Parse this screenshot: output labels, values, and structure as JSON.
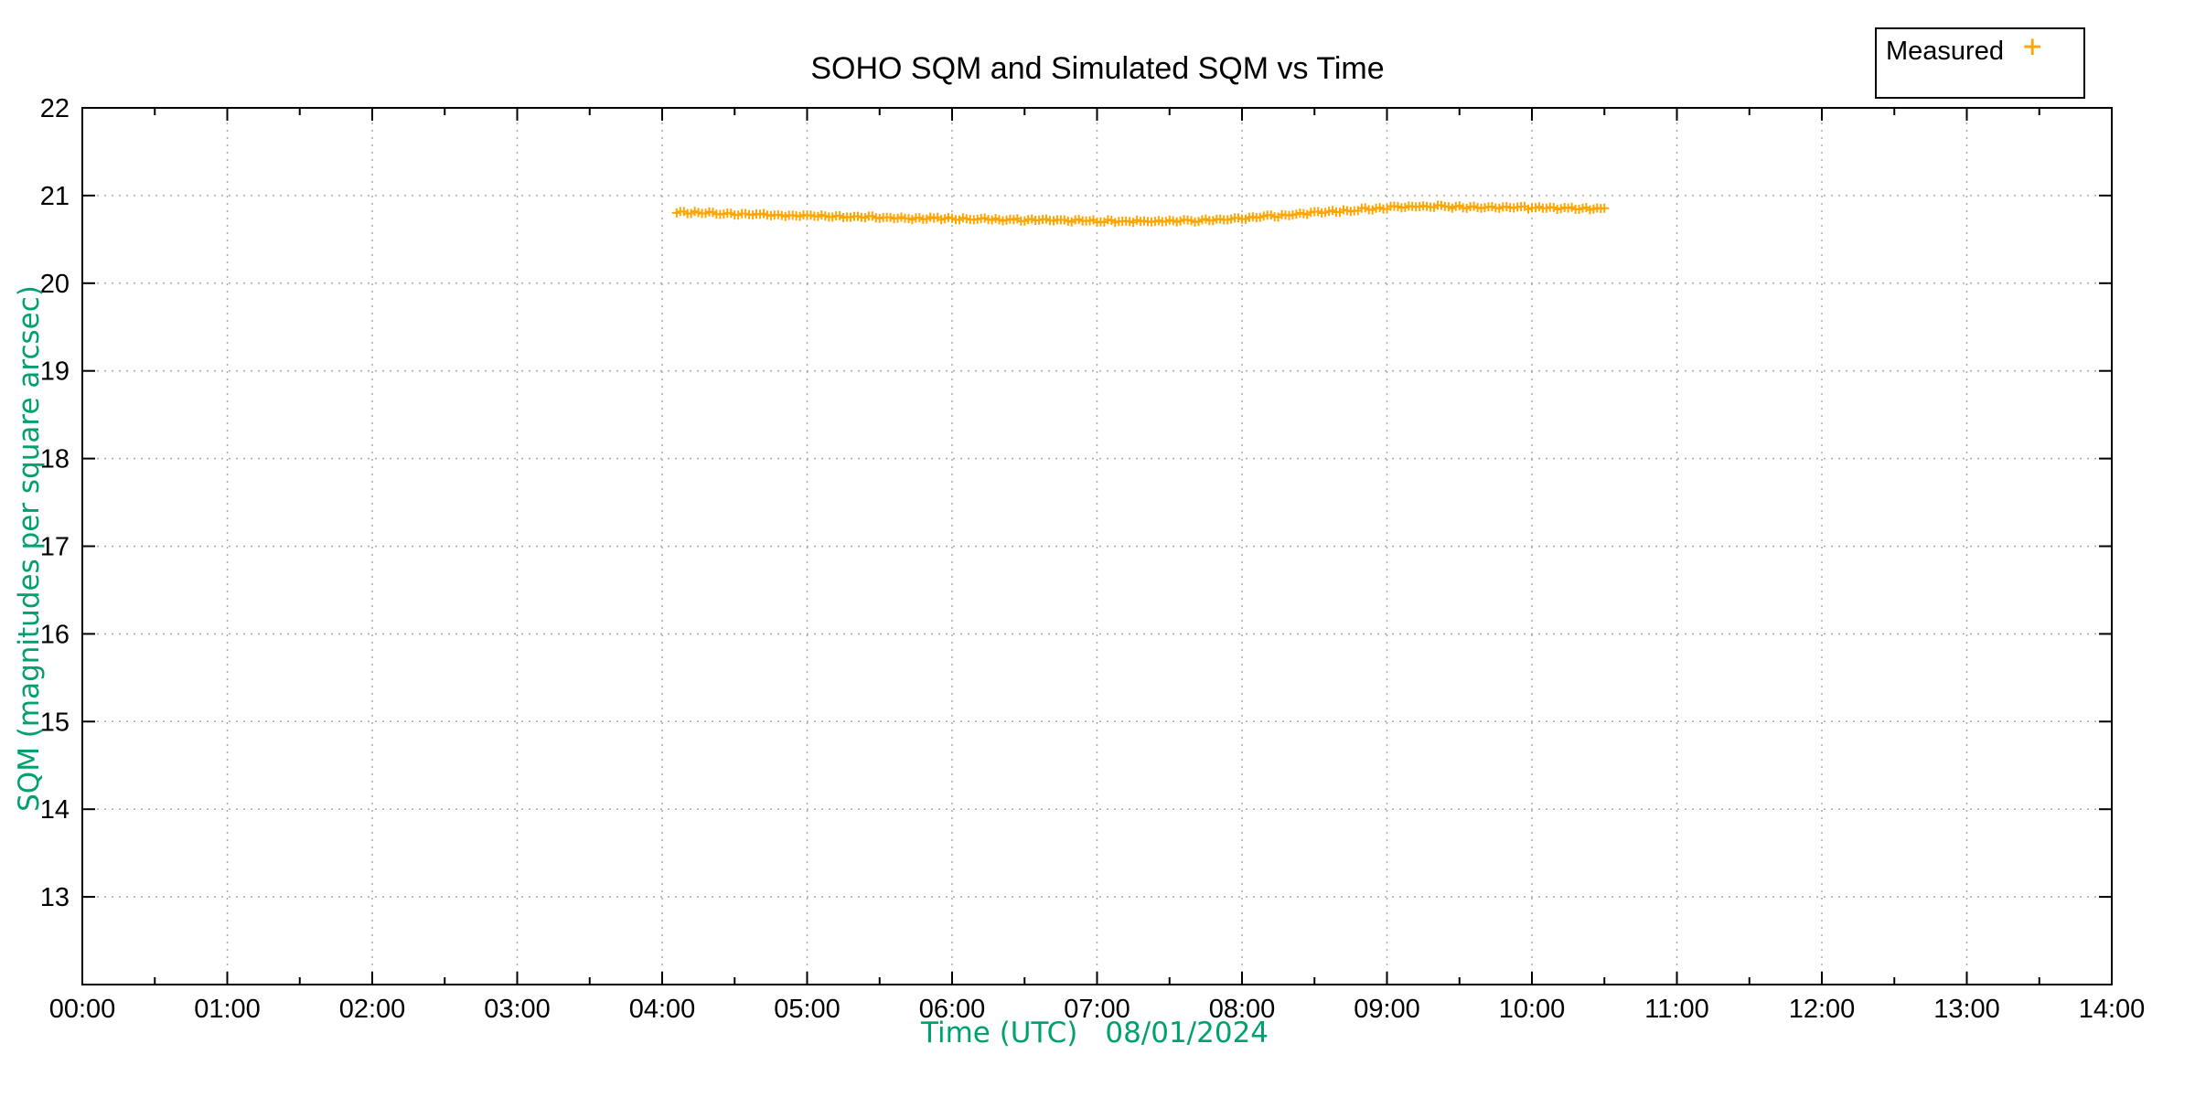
{
  "chart_data": {
    "type": "scatter",
    "title": "SOHO SQM and Simulated SQM vs Time",
    "xlabel": "Time (UTC)   08/01/2024",
    "xlabel_text": "Time (UTC)",
    "xlabel_date": "08/01/2024",
    "ylabel": "SQM (magnitudes per square arcsec)",
    "xlim_hours": [
      0,
      14
    ],
    "ylim": [
      12,
      22
    ],
    "grid": true,
    "legend_position": "top-right",
    "x_tick_labels": [
      "00:00",
      "01:00",
      "02:00",
      "03:00",
      "04:00",
      "05:00",
      "06:00",
      "07:00",
      "08:00",
      "09:00",
      "10:00",
      "11:00",
      "12:00",
      "13:00",
      "14:00"
    ],
    "x_tick_hours": [
      0,
      1,
      2,
      3,
      4,
      5,
      6,
      7,
      8,
      9,
      10,
      11,
      12,
      13,
      14
    ],
    "x_minor_tick_interval_hours": 0.5,
    "y_tick_labels": [
      "13",
      "14",
      "15",
      "16",
      "17",
      "18",
      "19",
      "20",
      "21",
      "22"
    ],
    "y_tick_values": [
      13,
      14,
      15,
      16,
      17,
      18,
      19,
      20,
      21,
      22
    ],
    "colors": {
      "measured_series": "#FFA500",
      "axis_label_green": "#00A070",
      "grid_gray": "#a8a8a8",
      "axis_black": "#000000"
    },
    "series": [
      {
        "name": "Measured",
        "marker": "+",
        "color": "#FFA500",
        "points_hour_sqm": [
          [
            4.1,
            20.81
          ],
          [
            4.2,
            20.815
          ],
          [
            4.3,
            20.81
          ],
          [
            4.4,
            20.8
          ],
          [
            4.5,
            20.795
          ],
          [
            4.6,
            20.79
          ],
          [
            4.7,
            20.788
          ],
          [
            4.8,
            20.785
          ],
          [
            4.9,
            20.782
          ],
          [
            5.0,
            20.778
          ],
          [
            5.1,
            20.775
          ],
          [
            5.2,
            20.772
          ],
          [
            5.3,
            20.77
          ],
          [
            5.4,
            20.762
          ],
          [
            5.5,
            20.758
          ],
          [
            5.6,
            20.752
          ],
          [
            5.7,
            20.748
          ],
          [
            5.8,
            20.748
          ],
          [
            5.9,
            20.745
          ],
          [
            6.0,
            20.748
          ],
          [
            6.1,
            20.742
          ],
          [
            6.2,
            20.738
          ],
          [
            6.3,
            20.732
          ],
          [
            6.4,
            20.73
          ],
          [
            6.5,
            20.728
          ],
          [
            6.6,
            20.728
          ],
          [
            6.7,
            20.724
          ],
          [
            6.8,
            20.722
          ],
          [
            6.9,
            20.72
          ],
          [
            7.0,
            20.718
          ],
          [
            7.1,
            20.716
          ],
          [
            7.2,
            20.714
          ],
          [
            7.3,
            20.712
          ],
          [
            7.4,
            20.712
          ],
          [
            7.5,
            20.715
          ],
          [
            7.6,
            20.718
          ],
          [
            7.7,
            20.722
          ],
          [
            7.8,
            20.728
          ],
          [
            7.9,
            20.74
          ],
          [
            8.0,
            20.752
          ],
          [
            8.1,
            20.762
          ],
          [
            8.2,
            20.77
          ],
          [
            8.3,
            20.78
          ],
          [
            8.4,
            20.798
          ],
          [
            8.5,
            20.812
          ],
          [
            8.6,
            20.822
          ],
          [
            8.7,
            20.832
          ],
          [
            8.8,
            20.848
          ],
          [
            8.9,
            20.858
          ],
          [
            9.0,
            20.868
          ],
          [
            9.1,
            20.878
          ],
          [
            9.2,
            20.884
          ],
          [
            9.3,
            20.884
          ],
          [
            9.4,
            20.88
          ],
          [
            9.5,
            20.878
          ],
          [
            9.6,
            20.876
          ],
          [
            9.7,
            20.874
          ],
          [
            9.8,
            20.872
          ],
          [
            9.9,
            20.87
          ],
          [
            10.0,
            20.868
          ],
          [
            10.1,
            20.866
          ],
          [
            10.2,
            20.864
          ],
          [
            10.3,
            20.862
          ],
          [
            10.4,
            20.858
          ],
          [
            10.5,
            20.855
          ]
        ]
      }
    ]
  }
}
